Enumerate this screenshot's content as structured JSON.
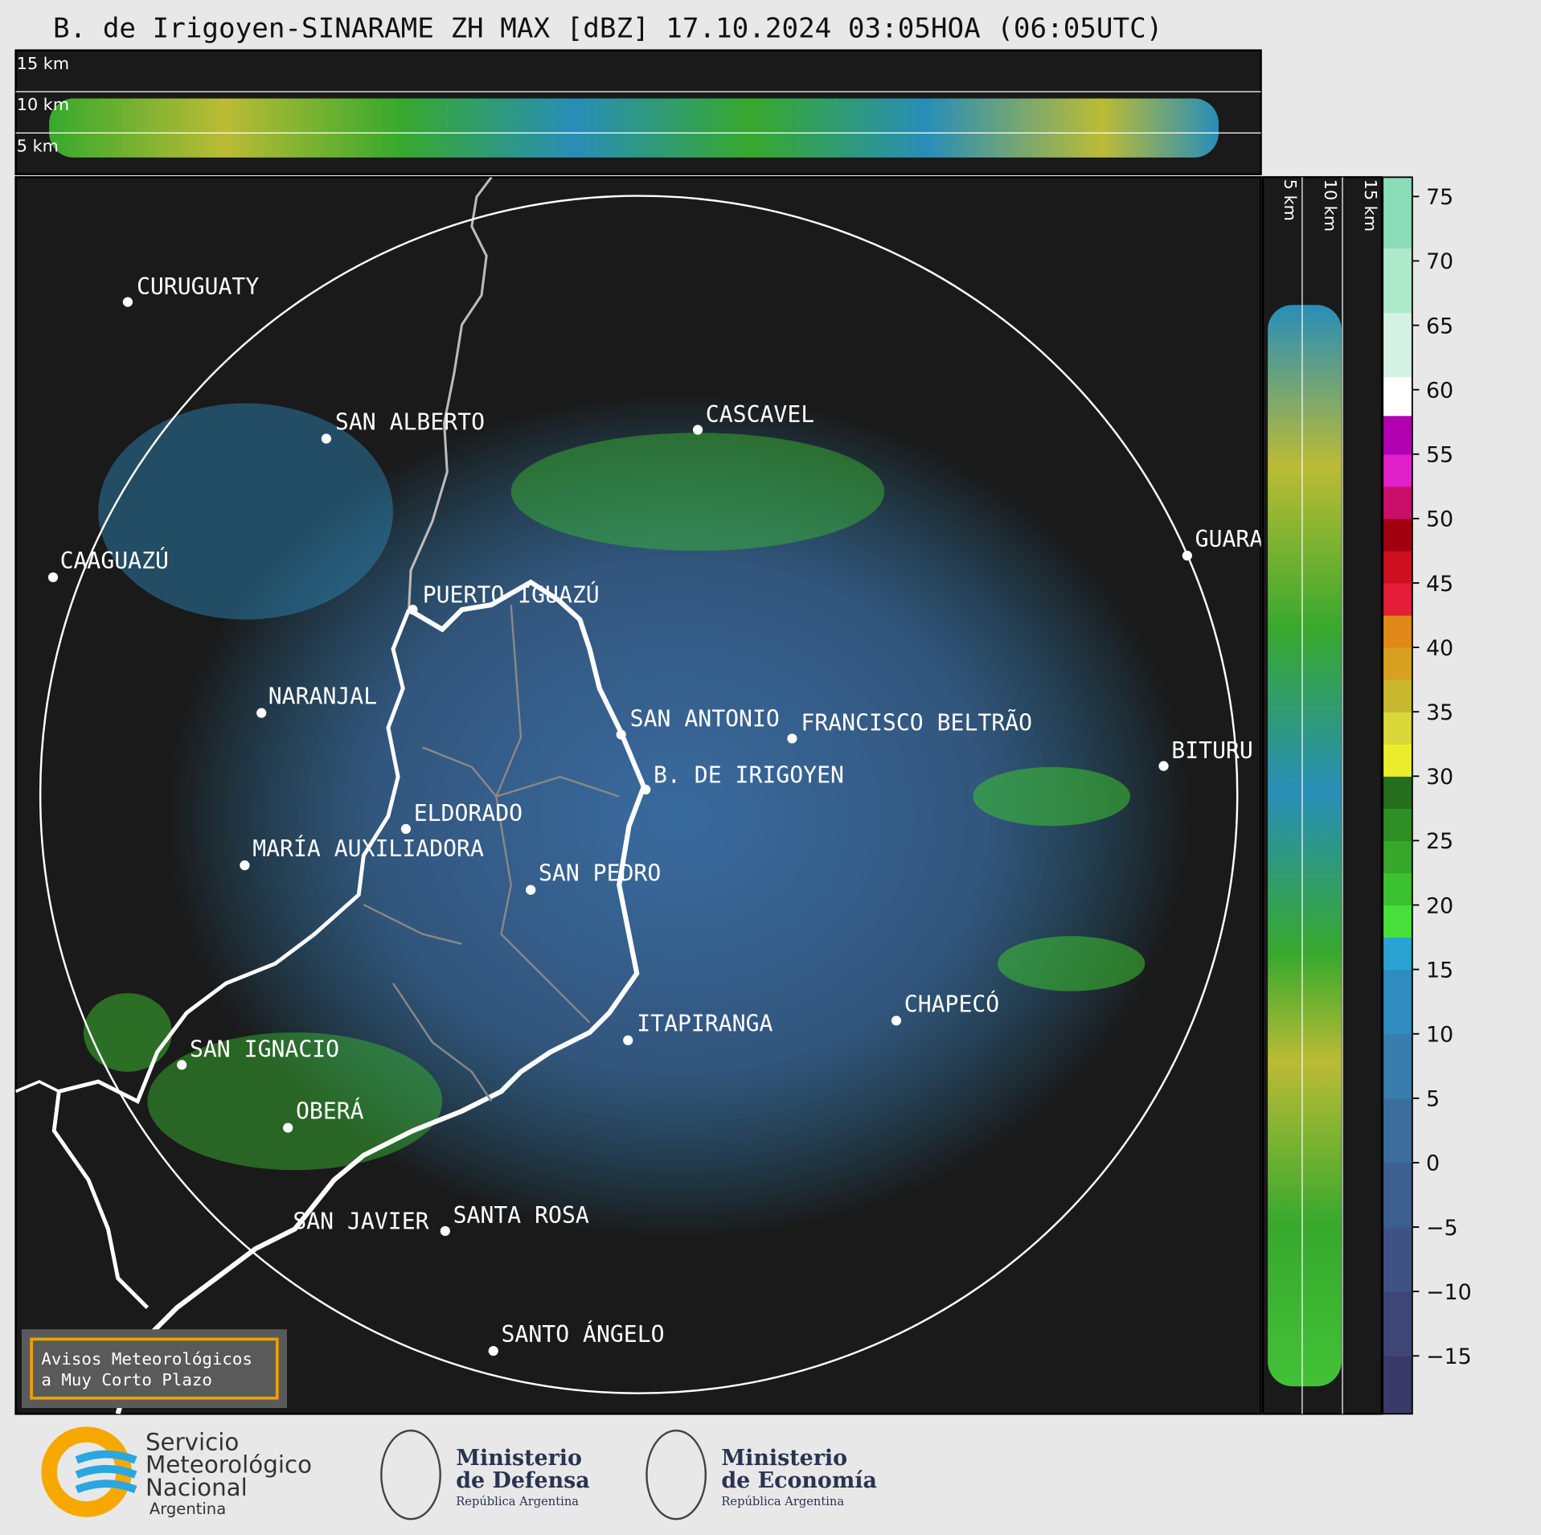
{
  "title": "B. de Irigoyen-SINARAME ZH MAX [dBZ] 17.10.2024 03:05HOA (06:05UTC)",
  "profile_top": {
    "labels": [
      "15 km",
      "10 km",
      "5 km"
    ]
  },
  "profile_right": {
    "labels": [
      "5 km",
      "10 km",
      "15 km"
    ]
  },
  "cities": [
    "CURUGUATY",
    "SAN ALBERTO",
    "CASCAVEL",
    "CAAGUAZÚ",
    "GUARA",
    "PUERTO IGUAZÚ",
    "NARANJAL",
    "SAN ANTONIO",
    "FRANCISCO BELTRÃO",
    "BITURU",
    "B. DE IRIGOYEN",
    "ELDORADO",
    "MARÍA AUXILIADORA",
    "SAN PEDRO",
    "CHAPECÓ",
    "ITAPIRANGA",
    "SAN IGNACIO",
    "OBERÁ",
    "SAN JAVIER",
    "SANTA ROSA",
    "SANTO ÁNGELO"
  ],
  "colorbar": {
    "clim": [
      -19.5,
      76.5
    ],
    "ticks": [
      75,
      70,
      65,
      60,
      55,
      50,
      45,
      40,
      35,
      30,
      25,
      20,
      15,
      10,
      5,
      0,
      {
        "value": -5,
        "label": "−5"
      },
      {
        "value": -10,
        "label": "−10"
      },
      {
        "value": -15,
        "label": "−15"
      }
    ],
    "bounds": [
      -19.5,
      -15,
      -10,
      -5,
      0,
      5,
      10,
      15,
      17.5,
      20,
      22.5,
      25,
      27.5,
      30,
      32.5,
      35,
      37.5,
      40,
      42.5,
      45,
      47.5,
      50,
      52.5,
      55,
      58,
      61,
      66,
      71,
      76.5
    ],
    "colors": [
      "#3a3a68",
      "#3e4676",
      "#3e5284",
      "#3c5f90",
      "#3a6d9c",
      "#397dad",
      "#2f8cbe",
      "#2aa2d4",
      "#49df3b",
      "#3cc230",
      "#35a82a",
      "#2e8f24",
      "#256f1c",
      "#ecec2e",
      "#d8d83a",
      "#c8b82f",
      "#d8a020",
      "#e08817",
      "#e41e38",
      "#cc1020",
      "#a00010",
      "#c8106a",
      "#e020c8",
      "#b000b0",
      "#ffffff",
      "#d4f2e4",
      "#aee9cc",
      "#8adcb9"
    ]
  },
  "notice": [
    "Avisos Meteorológicos",
    "a Muy Corto Plazo"
  ],
  "logos": {
    "smn": [
      "Servicio",
      "Meteorológico",
      "Nacional",
      "Argentina"
    ],
    "defensa": [
      "Ministerio",
      "de Defensa",
      "República Argentina"
    ],
    "economia": [
      "Ministerio",
      "de Economía",
      "República Argentina"
    ]
  }
}
